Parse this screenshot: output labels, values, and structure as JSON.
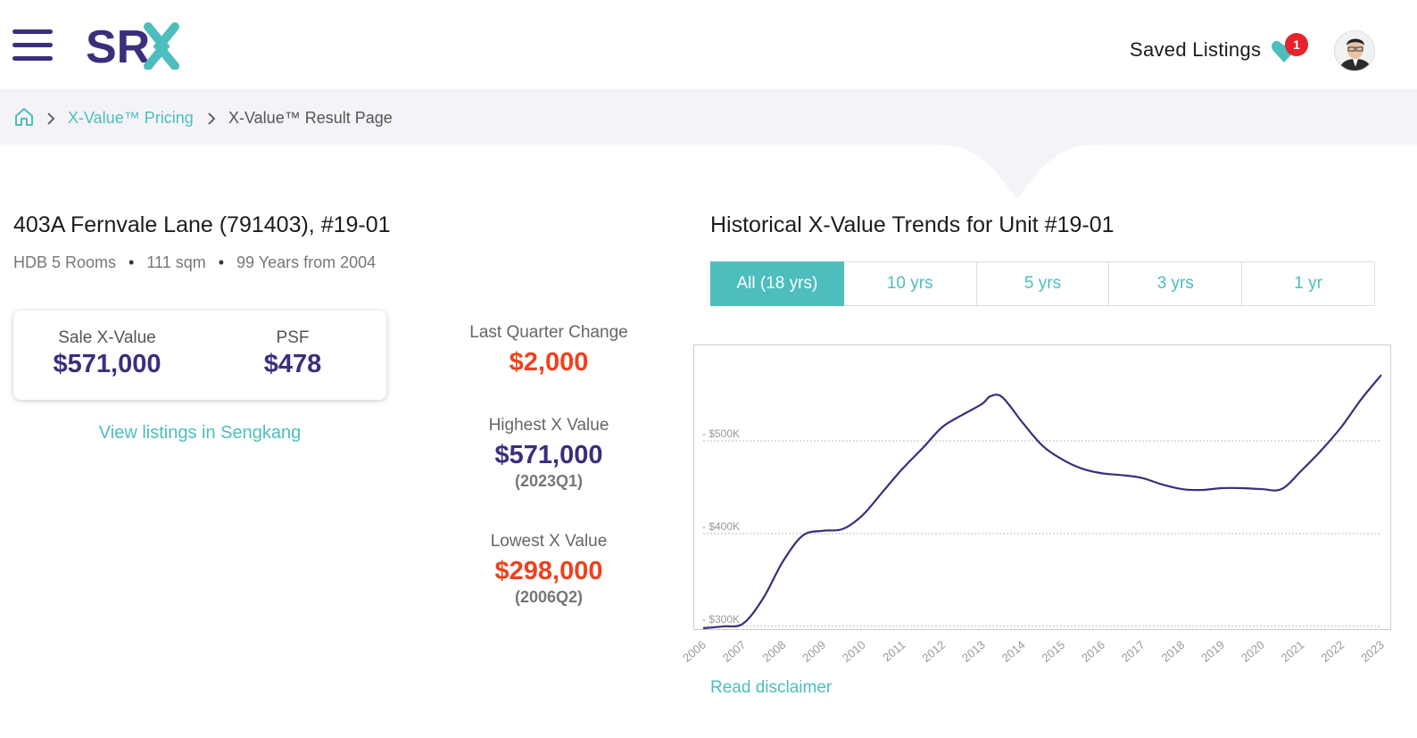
{
  "header": {
    "logo_text": "SRX",
    "saved_listings_label": "Saved Listings",
    "saved_count": "1",
    "brand_color": "#3d2d7c",
    "accent_color": "#4dbdbd"
  },
  "breadcrumb": {
    "items": [
      {
        "icon": "home-icon"
      },
      {
        "label": "X-Value™ Pricing"
      },
      {
        "label": "X-Value™ Result Page"
      }
    ]
  },
  "property": {
    "address": "403A Fernvale Lane (791403), #19-01",
    "type": "HDB 5 Rooms",
    "size": "111 sqm",
    "tenure": "99 Years from 2004",
    "separator": "•"
  },
  "valuation": {
    "sale_label": "Sale X-Value",
    "sale_value": "$571,000",
    "psf_label": "PSF",
    "psf_value": "$478",
    "view_listings": "View listings in Sengkang"
  },
  "stats": {
    "last_quarter_label": "Last Quarter Change",
    "last_quarter_value": "$2,000",
    "highest_label": "Highest X Value",
    "highest_value": "$571,000",
    "highest_quarter": "(2023Q1)",
    "lowest_label": "Lowest X Value",
    "lowest_value": "$298,000",
    "lowest_quarter": "(2006Q2)",
    "up_color": "#3d2d7c",
    "down_color": "#f0401d"
  },
  "trends": {
    "title": "Historical X-Value Trends for Unit #19-01",
    "tabs": [
      "All (18 yrs)",
      "10 yrs",
      "5 yrs",
      "3 yrs",
      "1 yr"
    ],
    "active_tab": 0,
    "disclaimer": "Read disclaimer"
  },
  "chart_data": {
    "type": "line",
    "title": "",
    "xlabel": "",
    "ylabel": "",
    "y_ticks": [
      "$300K",
      "$400K",
      "$500K"
    ],
    "ylim": [
      298000,
      600000
    ],
    "x_ticks": [
      "2006",
      "2007",
      "2008",
      "2009",
      "2010",
      "2011",
      "2012",
      "2013",
      "2014",
      "2015",
      "2016",
      "2017",
      "2018",
      "2019",
      "2020",
      "2021",
      "2022",
      "2023"
    ],
    "grid": true,
    "line_color": "#3d2d7c",
    "series": [
      {
        "x": [
          2006.0,
          2006.5,
          2007.0,
          2007.5,
          2008.0,
          2008.5,
          2009.0,
          2009.5,
          2010.0,
          2010.5,
          2011.0,
          2011.5,
          2012.0,
          2012.5,
          2013.0,
          2013.2,
          2013.5,
          2014.0,
          2014.5,
          2015.0,
          2015.5,
          2016.0,
          2016.5,
          2017.0,
          2017.5,
          2018.0,
          2018.5,
          2019.0,
          2019.5,
          2020.0,
          2020.5,
          2021.0,
          2021.5,
          2022.0,
          2022.5,
          2023.0
        ],
        "y": [
          298000,
          300000,
          303000,
          330000,
          370000,
          398000,
          403000,
          405000,
          420000,
          445000,
          470000,
          492000,
          515000,
          528000,
          540000,
          548000,
          547000,
          520000,
          495000,
          480000,
          470000,
          465000,
          463000,
          460000,
          453000,
          448000,
          447000,
          449000,
          449000,
          448000,
          448000,
          468000,
          490000,
          515000,
          545000,
          571000
        ]
      }
    ]
  }
}
